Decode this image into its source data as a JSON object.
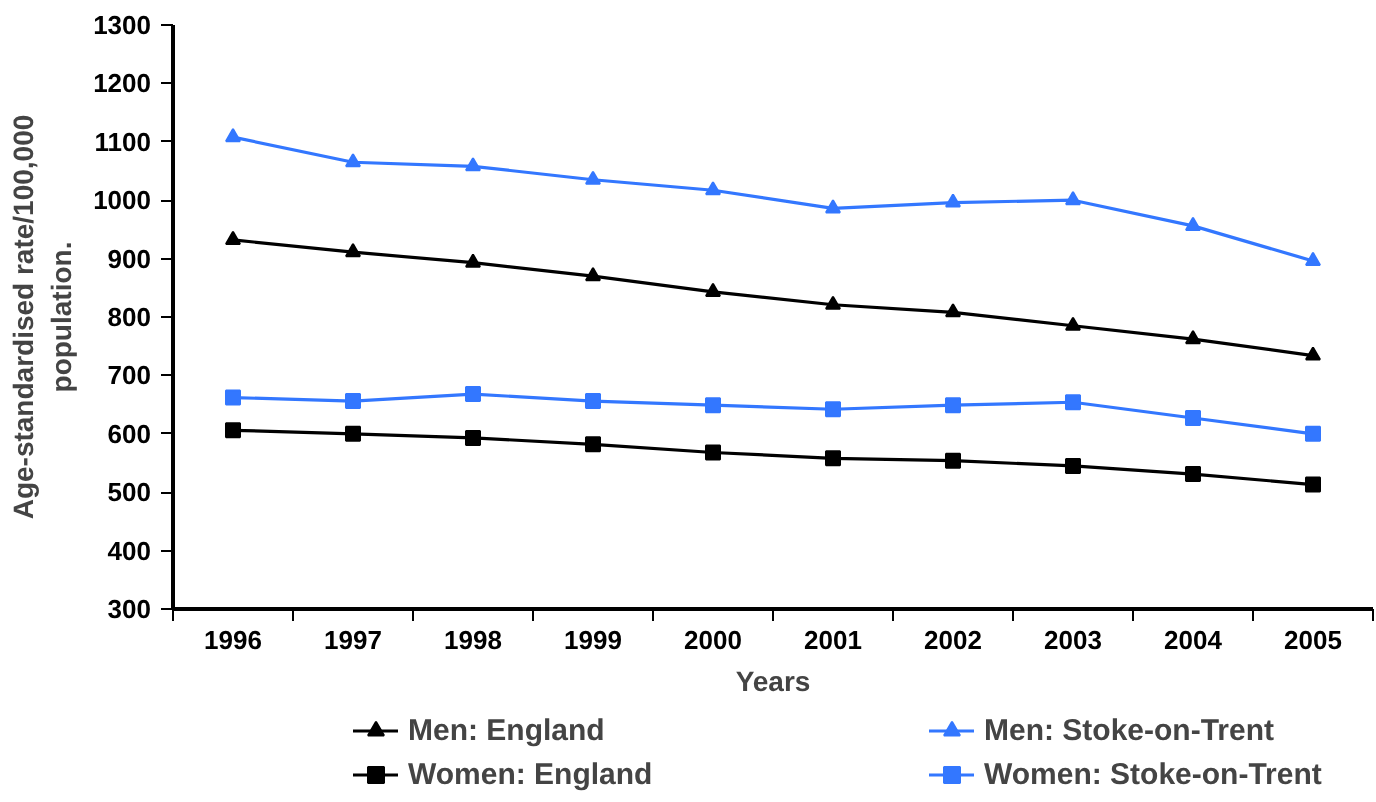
{
  "chart_data": {
    "type": "line",
    "xlabel": "Years",
    "ylabel": "Age-standardised rate/100,000\npopulation.",
    "categories": [
      "1996",
      "1997",
      "1998",
      "1999",
      "2000",
      "2001",
      "2002",
      "2003",
      "2004",
      "2005"
    ],
    "ylim": [
      300,
      1300
    ],
    "yticks": [
      300,
      400,
      500,
      600,
      700,
      800,
      900,
      1000,
      1100,
      1200,
      1300
    ],
    "grid": false,
    "legend": "bottom",
    "line_style": "solid",
    "series": [
      {
        "name": "Men: England",
        "color": "#000000",
        "marker": "triangle",
        "values": [
          932,
          911,
          893,
          870,
          843,
          821,
          808,
          785,
          762,
          734
        ]
      },
      {
        "name": "Women: England",
        "color": "#000000",
        "marker": "square",
        "values": [
          606,
          600,
          593,
          582,
          568,
          558,
          554,
          545,
          531,
          513
        ]
      },
      {
        "name": "Men: Stoke-on-Trent",
        "color": "#3377ff",
        "marker": "triangle",
        "values": [
          1108,
          1065,
          1058,
          1035,
          1017,
          986,
          996,
          1000,
          956,
          896
        ]
      },
      {
        "name": "Women: Stoke-on-Trent",
        "color": "#3377ff",
        "marker": "square",
        "values": [
          662,
          656,
          668,
          656,
          649,
          642,
          649,
          654,
          627,
          600
        ]
      }
    ]
  }
}
